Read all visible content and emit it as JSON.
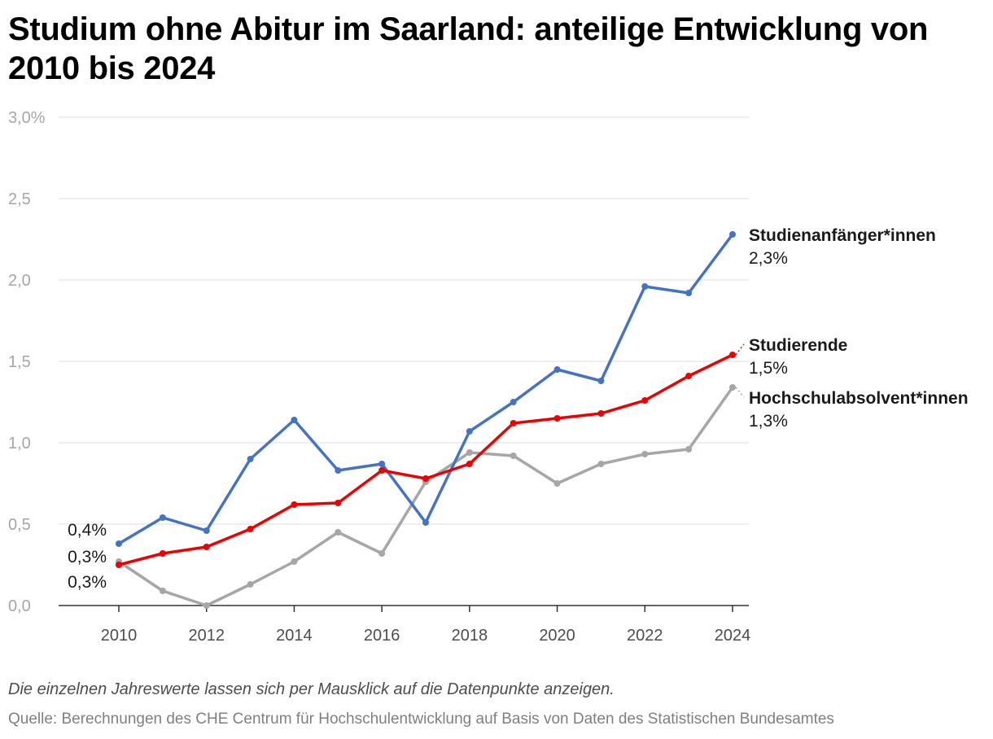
{
  "title": "Studium ohne Abitur im Saarland: anteilige Entwicklung von 2010 bis 2024",
  "note": "Die einzelnen Jahreswerte lassen sich per Mausklick auf die Datenpunkte anzeigen.",
  "source": "Quelle: Berechnungen des CHE Centrum für Hochschulentwicklung auf Basis von Daten des Statistischen Bundesamtes",
  "chart_data": {
    "type": "line",
    "x": [
      2010,
      2011,
      2012,
      2013,
      2014,
      2015,
      2016,
      2017,
      2018,
      2019,
      2020,
      2021,
      2022,
      2023,
      2024
    ],
    "xticks": [
      "2010",
      "2012",
      "2014",
      "2016",
      "2018",
      "2020",
      "2022",
      "2024"
    ],
    "yticks": [
      "0,0",
      "0,5",
      "1,0",
      "1,5",
      "2,0",
      "2,5",
      "3,0%"
    ],
    "ylim": [
      0,
      3.0
    ],
    "grid": true,
    "series": [
      {
        "name": "Hochschulabsolvent*innen",
        "color": "#a6a6a6",
        "values": [
          0.27,
          0.09,
          0.0,
          0.13,
          0.27,
          0.45,
          0.32,
          0.76,
          0.94,
          0.92,
          0.75,
          0.87,
          0.93,
          0.96,
          1.34
        ],
        "start_label": "0,3%",
        "end_label": "1,3%"
      },
      {
        "name": "Studienanfänger*innen",
        "color": "#4472c4",
        "values": [
          0.38,
          0.54,
          0.46,
          0.9,
          1.14,
          0.83,
          0.87,
          0.51,
          1.07,
          1.25,
          1.45,
          1.38,
          1.96,
          1.92,
          2.28
        ],
        "start_label": "0,4%",
        "end_label": "2,3%"
      },
      {
        "name": "Studierende",
        "color": "#ee0000",
        "values": [
          0.25,
          0.32,
          0.36,
          0.47,
          0.62,
          0.63,
          0.83,
          0.78,
          0.87,
          1.12,
          1.15,
          1.18,
          1.26,
          1.41,
          1.54
        ],
        "start_label": "0,3%",
        "end_label": "1,5%"
      }
    ]
  }
}
